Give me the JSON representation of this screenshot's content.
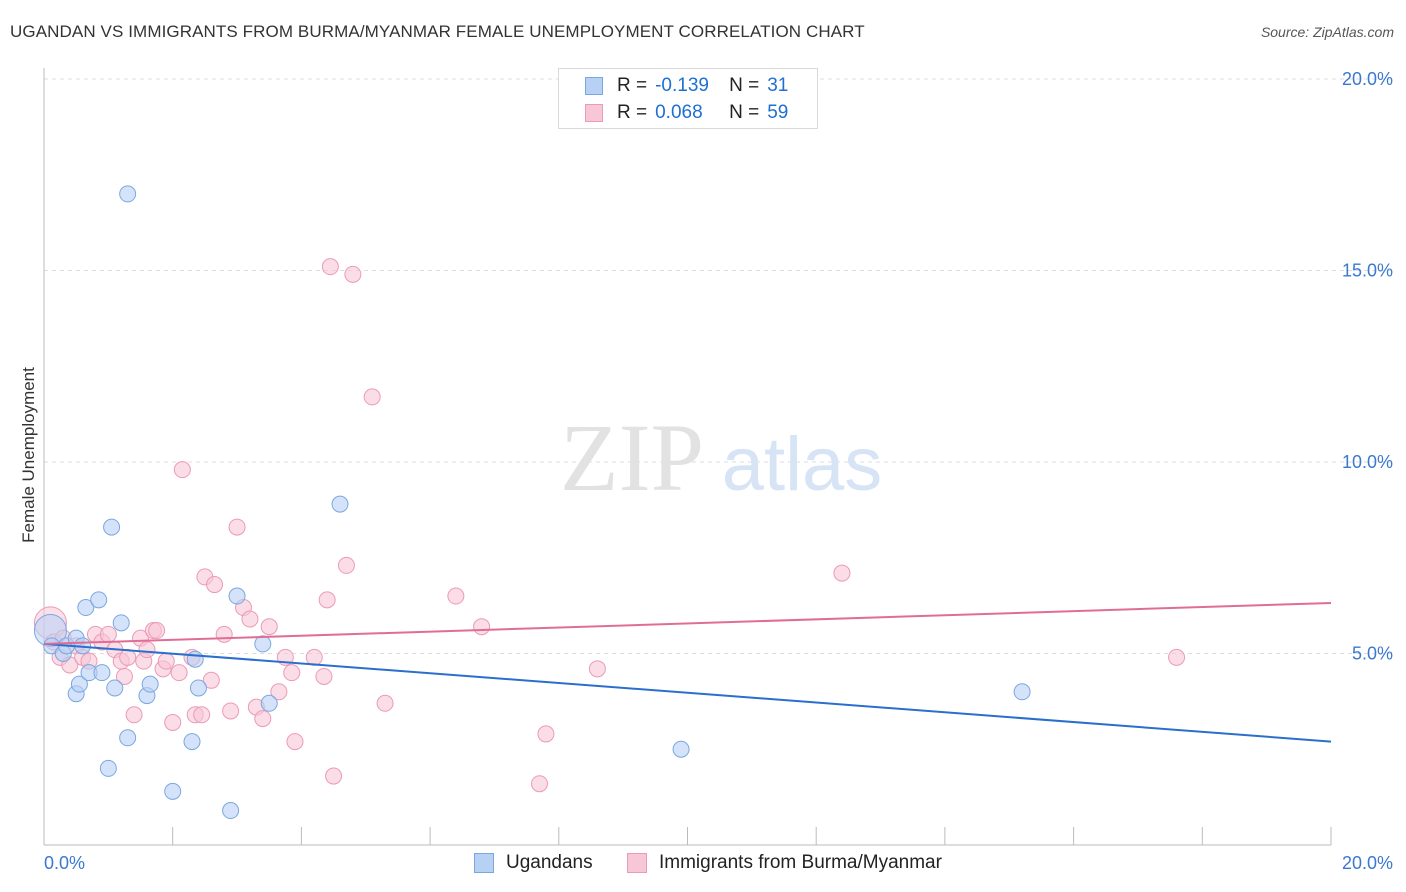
{
  "header": {
    "title": "UGANDAN VS IMMIGRANTS FROM BURMA/MYANMAR FEMALE UNEMPLOYMENT CORRELATION CHART",
    "source": "Source: ZipAtlas.com"
  },
  "watermark": {
    "zip": "ZIP",
    "atlas": "atlas"
  },
  "legend": {
    "r_label": "R =",
    "n_label": "N =",
    "rows": [
      {
        "name": "Ugandans",
        "r": "-0.139",
        "n": "31"
      },
      {
        "name": "Immigrants from Burma/Myanmar",
        "r": "0.068",
        "n": "59"
      }
    ]
  },
  "colors": {
    "ugandans_fill": "#b7d1f5",
    "ugandans_stroke": "#7aa7e0",
    "ugandans_line": "#2a6fcc",
    "burma_fill": "#f8c7d7",
    "burma_stroke": "#ec9ab5",
    "burma_line": "#e06d98",
    "axis_text": "#3b78cf",
    "grid": "#dddddd"
  },
  "chart_data": {
    "type": "scatter",
    "title": "UGANDAN VS IMMIGRANTS FROM BURMA/MYANMAR FEMALE UNEMPLOYMENT CORRELATION CHART",
    "xlabel": "",
    "ylabel": "Female Unemployment",
    "xlim": [
      0,
      20
    ],
    "ylim": [
      0,
      20
    ],
    "x_tick_labels": [
      "0.0%",
      "20.0%"
    ],
    "y_ticks": [
      5,
      10,
      15,
      20
    ],
    "y_tick_labels": [
      "5.0%",
      "10.0%",
      "15.0%",
      "20.0%"
    ],
    "grid": true,
    "series": [
      {
        "name": "Ugandans",
        "trend": {
          "x": [
            0,
            20
          ],
          "y": [
            5.25,
            2.7
          ]
        },
        "points": [
          {
            "x": 0.1,
            "y": 5.6,
            "big": true
          },
          {
            "x": 0.12,
            "y": 5.2
          },
          {
            "x": 0.3,
            "y": 5.0
          },
          {
            "x": 0.35,
            "y": 5.2
          },
          {
            "x": 0.5,
            "y": 3.95
          },
          {
            "x": 0.5,
            "y": 5.4
          },
          {
            "x": 0.55,
            "y": 4.2
          },
          {
            "x": 0.6,
            "y": 5.2
          },
          {
            "x": 0.65,
            "y": 6.2
          },
          {
            "x": 0.7,
            "y": 4.5
          },
          {
            "x": 0.85,
            "y": 6.4
          },
          {
            "x": 0.9,
            "y": 4.5
          },
          {
            "x": 1.0,
            "y": 2.0
          },
          {
            "x": 1.05,
            "y": 8.3
          },
          {
            "x": 1.1,
            "y": 4.1
          },
          {
            "x": 1.2,
            "y": 5.8
          },
          {
            "x": 1.3,
            "y": 2.8
          },
          {
            "x": 1.3,
            "y": 17.0
          },
          {
            "x": 1.6,
            "y": 3.9
          },
          {
            "x": 1.65,
            "y": 4.2
          },
          {
            "x": 2.0,
            "y": 1.4
          },
          {
            "x": 2.3,
            "y": 2.7
          },
          {
            "x": 2.35,
            "y": 4.85
          },
          {
            "x": 2.4,
            "y": 4.1
          },
          {
            "x": 2.9,
            "y": 0.9
          },
          {
            "x": 3.0,
            "y": 6.5
          },
          {
            "x": 3.4,
            "y": 5.25
          },
          {
            "x": 3.5,
            "y": 3.7
          },
          {
            "x": 4.6,
            "y": 8.9
          },
          {
            "x": 9.9,
            "y": 2.5
          },
          {
            "x": 15.2,
            "y": 4.0
          }
        ]
      },
      {
        "name": "Immigrants from Burma/Myanmar",
        "trend": {
          "x": [
            0,
            20
          ],
          "y": [
            5.25,
            6.32
          ]
        },
        "points": [
          {
            "x": 0.1,
            "y": 5.8,
            "big": true
          },
          {
            "x": 0.15,
            "y": 5.3
          },
          {
            "x": 0.25,
            "y": 4.9
          },
          {
            "x": 0.3,
            "y": 5.4
          },
          {
            "x": 0.4,
            "y": 4.7
          },
          {
            "x": 0.5,
            "y": 5.2
          },
          {
            "x": 0.6,
            "y": 4.9
          },
          {
            "x": 0.7,
            "y": 4.8
          },
          {
            "x": 0.8,
            "y": 5.5
          },
          {
            "x": 0.9,
            "y": 5.3
          },
          {
            "x": 1.0,
            "y": 5.5
          },
          {
            "x": 1.1,
            "y": 5.1
          },
          {
            "x": 1.2,
            "y": 4.8
          },
          {
            "x": 1.25,
            "y": 4.4
          },
          {
            "x": 1.3,
            "y": 4.9
          },
          {
            "x": 1.4,
            "y": 3.4
          },
          {
            "x": 1.5,
            "y": 5.4
          },
          {
            "x": 1.55,
            "y": 4.8
          },
          {
            "x": 1.6,
            "y": 5.1
          },
          {
            "x": 1.7,
            "y": 5.6
          },
          {
            "x": 1.75,
            "y": 5.6
          },
          {
            "x": 1.85,
            "y": 4.6
          },
          {
            "x": 1.9,
            "y": 4.8
          },
          {
            "x": 2.0,
            "y": 3.2
          },
          {
            "x": 2.1,
            "y": 4.5
          },
          {
            "x": 2.15,
            "y": 9.8
          },
          {
            "x": 2.3,
            "y": 4.9
          },
          {
            "x": 2.35,
            "y": 3.4
          },
          {
            "x": 2.45,
            "y": 3.4
          },
          {
            "x": 2.5,
            "y": 7.0
          },
          {
            "x": 2.6,
            "y": 4.3
          },
          {
            "x": 2.65,
            "y": 6.8
          },
          {
            "x": 2.8,
            "y": 5.5
          },
          {
            "x": 2.9,
            "y": 3.5
          },
          {
            "x": 3.0,
            "y": 8.3
          },
          {
            "x": 3.1,
            "y": 6.2
          },
          {
            "x": 3.2,
            "y": 5.9
          },
          {
            "x": 3.3,
            "y": 3.6
          },
          {
            "x": 3.4,
            "y": 3.3
          },
          {
            "x": 3.5,
            "y": 5.7
          },
          {
            "x": 3.65,
            "y": 4.0
          },
          {
            "x": 3.75,
            "y": 4.9
          },
          {
            "x": 3.85,
            "y": 4.5
          },
          {
            "x": 3.9,
            "y": 2.7
          },
          {
            "x": 4.2,
            "y": 4.9
          },
          {
            "x": 4.35,
            "y": 4.4
          },
          {
            "x": 4.4,
            "y": 6.4
          },
          {
            "x": 4.45,
            "y": 15.1
          },
          {
            "x": 4.5,
            "y": 1.8
          },
          {
            "x": 4.7,
            "y": 7.3
          },
          {
            "x": 4.8,
            "y": 14.9
          },
          {
            "x": 5.1,
            "y": 11.7
          },
          {
            "x": 5.3,
            "y": 3.7
          },
          {
            "x": 6.4,
            "y": 6.5
          },
          {
            "x": 6.8,
            "y": 5.7
          },
          {
            "x": 7.8,
            "y": 2.9
          },
          {
            "x": 7.7,
            "y": 1.6
          },
          {
            "x": 8.6,
            "y": 4.6
          },
          {
            "x": 12.4,
            "y": 7.1
          },
          {
            "x": 17.6,
            "y": 4.9
          }
        ]
      }
    ]
  }
}
